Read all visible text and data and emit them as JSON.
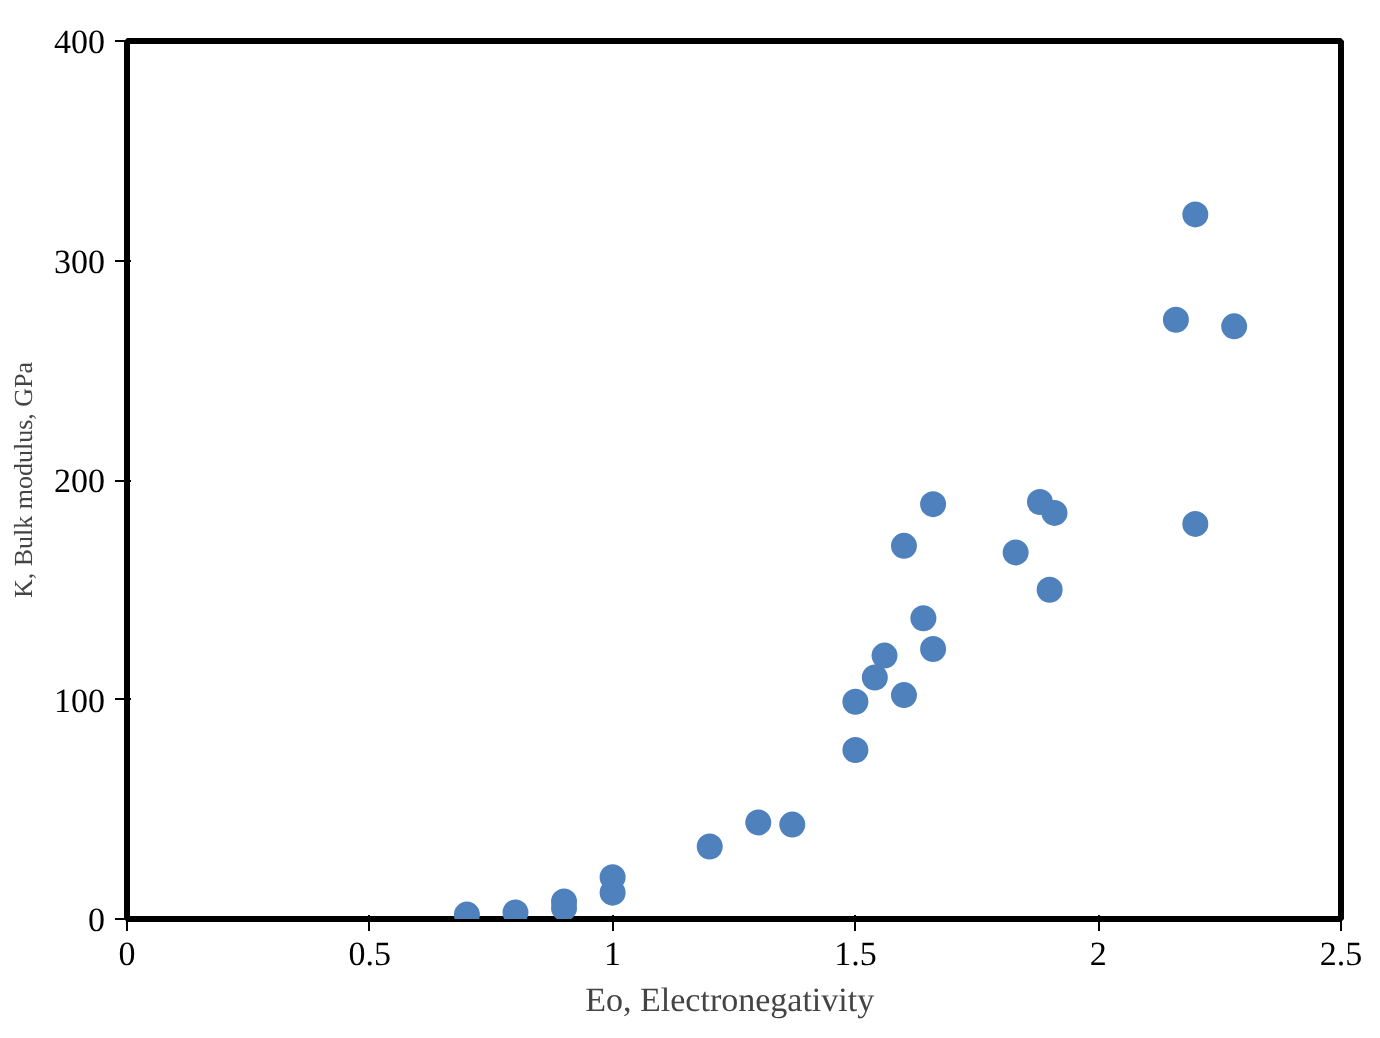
{
  "chart_data": {
    "type": "scatter",
    "xlabel": "Eo,  Electronegativity",
    "ylabel": "K, Bulk modulus, GPa",
    "x": [
      0.7,
      0.8,
      0.9,
      0.9,
      1.0,
      1.0,
      1.2,
      1.3,
      1.37,
      1.5,
      1.5,
      1.54,
      1.56,
      1.6,
      1.6,
      1.64,
      1.66,
      1.66,
      1.83,
      1.88,
      1.9,
      1.91,
      2.16,
      2.2,
      2.2,
      2.28
    ],
    "series": [
      {
        "color": "#4f81bd",
        "values": [
          2,
          3,
          5,
          8,
          12,
          19,
          33,
          44,
          43,
          77,
          99,
          110,
          120,
          102,
          170,
          137,
          123,
          189,
          167,
          190,
          150,
          185,
          273,
          180,
          321,
          270
        ]
      }
    ],
    "xlim": [
      0,
      2.5
    ],
    "xticks": [
      0,
      0.5,
      1,
      1.5,
      2,
      2.5
    ],
    "ylim": [
      0,
      400
    ],
    "yticks": [
      0,
      100,
      200,
      300,
      400
    ],
    "marker": "circle",
    "grid": false
  }
}
